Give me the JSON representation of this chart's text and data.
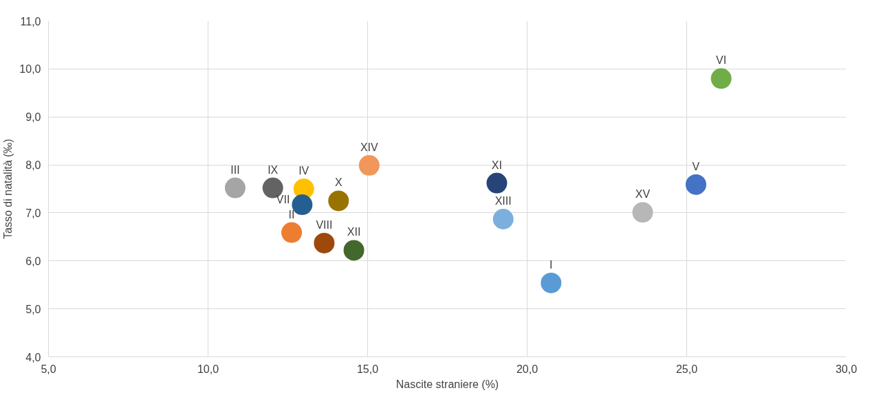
{
  "chart_data": {
    "type": "scatter",
    "xlabel": "Nascite straniere (%)",
    "ylabel": "Tasso di natalità (‰)",
    "xlim": [
      5,
      30
    ],
    "ylim": [
      4,
      11
    ],
    "xticks": [
      {
        "value": 5,
        "label": "5,0"
      },
      {
        "value": 10,
        "label": "10,0"
      },
      {
        "value": 15,
        "label": "15,0"
      },
      {
        "value": 20,
        "label": "20,0"
      },
      {
        "value": 25,
        "label": "25,0"
      },
      {
        "value": 30,
        "label": "30,0"
      }
    ],
    "yticks": [
      {
        "value": 4,
        "label": "4,0"
      },
      {
        "value": 5,
        "label": "5,0"
      },
      {
        "value": 6,
        "label": "6,0"
      },
      {
        "value": 7,
        "label": "7,0"
      },
      {
        "value": 8,
        "label": "8,0"
      },
      {
        "value": 9,
        "label": "9,0"
      },
      {
        "value": 10,
        "label": "10,0"
      },
      {
        "value": 11,
        "label": "11,0"
      }
    ],
    "grid": true,
    "marker": "circle",
    "series": [
      {
        "name": "I",
        "color": "#5b9bd5",
        "x": [
          20.75
        ],
        "values": [
          5.54
        ]
      },
      {
        "name": "II",
        "color": "#ed7d31",
        "x": [
          12.62
        ],
        "values": [
          6.59
        ]
      },
      {
        "name": "III",
        "color": "#a5a5a5",
        "x": [
          10.85
        ],
        "values": [
          7.52
        ]
      },
      {
        "name": "IV",
        "color": "#ffc000",
        "x": [
          13.0
        ],
        "values": [
          7.5
        ]
      },
      {
        "name": "V",
        "color": "#4472c4",
        "x": [
          25.29
        ],
        "values": [
          7.59
        ]
      },
      {
        "name": "VI",
        "color": "#70ad47",
        "x": [
          26.08
        ],
        "values": [
          9.8
        ]
      },
      {
        "name": "VII",
        "color": "#255e91",
        "x": [
          12.95
        ],
        "values": [
          7.17
        ]
      },
      {
        "name": "VIII",
        "color": "#9e480e",
        "x": [
          13.64
        ],
        "values": [
          6.37
        ]
      },
      {
        "name": "IX",
        "color": "#636363",
        "x": [
          12.03
        ],
        "values": [
          7.52
        ]
      },
      {
        "name": "X",
        "color": "#997300",
        "x": [
          14.09
        ],
        "values": [
          7.25
        ]
      },
      {
        "name": "XI",
        "color": "#264478",
        "x": [
          19.05
        ],
        "values": [
          7.62
        ]
      },
      {
        "name": "XII",
        "color": "#43682b",
        "x": [
          14.57
        ],
        "values": [
          6.22
        ]
      },
      {
        "name": "XIII",
        "color": "#7cafdd",
        "x": [
          19.25
        ],
        "values": [
          6.87
        ]
      },
      {
        "name": "XIV",
        "color": "#f1975a",
        "x": [
          15.05
        ],
        "values": [
          7.99
        ]
      },
      {
        "name": "XV",
        "color": "#b7b7b7",
        "x": [
          23.62
        ],
        "values": [
          7.01
        ]
      }
    ]
  }
}
